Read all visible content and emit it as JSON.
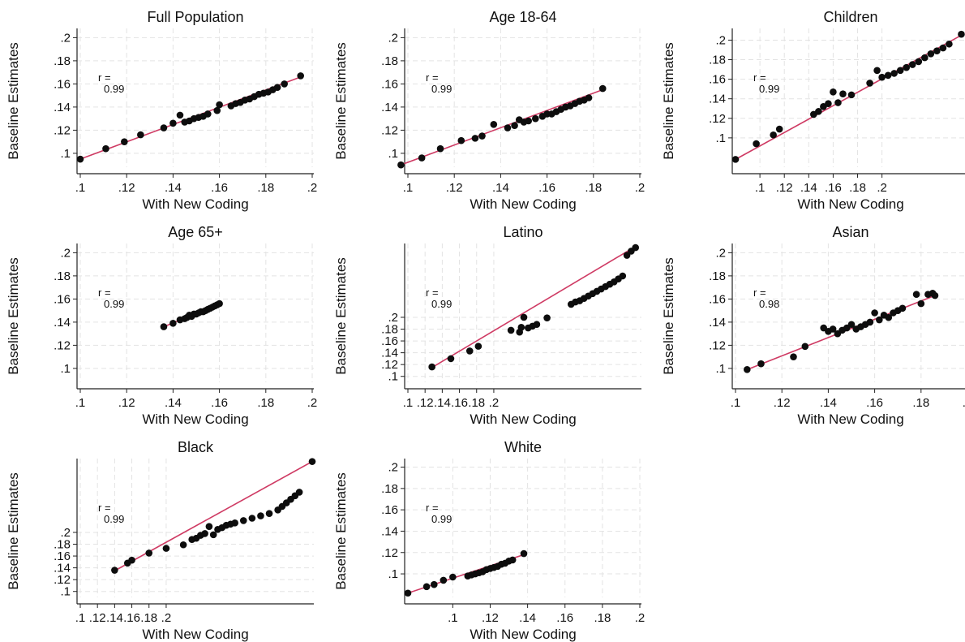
{
  "chart_data": [
    {
      "type": "scatter",
      "title": "Full Population",
      "xlabel": "With New Coding",
      "ylabel": "Baseline Estimates",
      "xticks": [
        ".1",
        ".12",
        ".14",
        ".16",
        ".18",
        ".2"
      ],
      "yticks": [
        ".1",
        ".12",
        ".14",
        ".16",
        ".18",
        ".2"
      ],
      "xlim": [
        0.1,
        0.2
      ],
      "ylim": [
        0.088,
        0.208
      ],
      "grid": true,
      "annotation": {
        "label": "r =",
        "value": "0.99"
      },
      "fit_line": {
        "x": [
          0.1,
          0.195
        ],
        "y": [
          0.095,
          0.166
        ]
      },
      "x": [
        0.1,
        0.111,
        0.119,
        0.126,
        0.136,
        0.14,
        0.143,
        0.145,
        0.147,
        0.149,
        0.151,
        0.153,
        0.155,
        0.159,
        0.16,
        0.165,
        0.167,
        0.169,
        0.171,
        0.173,
        0.175,
        0.177,
        0.179,
        0.181,
        0.183,
        0.185,
        0.188,
        0.195
      ],
      "y": [
        0.095,
        0.104,
        0.11,
        0.116,
        0.122,
        0.126,
        0.133,
        0.127,
        0.128,
        0.13,
        0.131,
        0.132,
        0.134,
        0.137,
        0.142,
        0.141,
        0.143,
        0.144,
        0.146,
        0.147,
        0.149,
        0.151,
        0.152,
        0.153,
        0.155,
        0.157,
        0.16,
        0.167
      ]
    },
    {
      "type": "scatter",
      "title": "Age 18-64",
      "xlabel": "With New Coding",
      "ylabel": "Baseline Estimates",
      "xticks": [
        ".1",
        ".12",
        ".14",
        ".16",
        ".18",
        ".2"
      ],
      "yticks": [
        ".1",
        ".12",
        ".14",
        ".16",
        ".18",
        ".2"
      ],
      "xlim": [
        0.1,
        0.2
      ],
      "ylim": [
        0.088,
        0.208
      ],
      "grid": true,
      "annotation": {
        "label": "r =",
        "value": "0.99"
      },
      "fit_line": {
        "x": [
          0.097,
          0.184
        ],
        "y": [
          0.09,
          0.155
        ]
      },
      "x": [
        0.097,
        0.106,
        0.114,
        0.123,
        0.129,
        0.132,
        0.137,
        0.143,
        0.146,
        0.148,
        0.15,
        0.152,
        0.155,
        0.158,
        0.16,
        0.162,
        0.164,
        0.166,
        0.168,
        0.17,
        0.172,
        0.174,
        0.176,
        0.178,
        0.184
      ],
      "y": [
        0.09,
        0.096,
        0.104,
        0.111,
        0.113,
        0.115,
        0.125,
        0.122,
        0.124,
        0.129,
        0.127,
        0.128,
        0.13,
        0.132,
        0.134,
        0.134,
        0.136,
        0.138,
        0.14,
        0.141,
        0.143,
        0.145,
        0.146,
        0.148,
        0.156
      ]
    },
    {
      "type": "scatter",
      "title": "Children",
      "xlabel": "With New Coding",
      "ylabel": "Baseline Estimates",
      "xticks": [
        ".1",
        ".12",
        ".14",
        ".16",
        ".18",
        ".2"
      ],
      "yticks": [
        ".1",
        ".12",
        ".14",
        ".16",
        ".18",
        ".2"
      ],
      "xlim": [
        0.08,
        0.27
      ],
      "ylim": [
        0.07,
        0.212
      ],
      "grid": true,
      "annotation": {
        "label": "r =",
        "value": "0.99"
      },
      "fit_line": {
        "x": [
          0.08,
          0.265
        ],
        "y": [
          0.078,
          0.205
        ]
      },
      "x": [
        0.08,
        0.097,
        0.111,
        0.116,
        0.144,
        0.148,
        0.152,
        0.156,
        0.16,
        0.164,
        0.168,
        0.175,
        0.19,
        0.196,
        0.2,
        0.205,
        0.21,
        0.215,
        0.22,
        0.225,
        0.23,
        0.235,
        0.24,
        0.245,
        0.25,
        0.255,
        0.265
      ],
      "y": [
        0.078,
        0.094,
        0.103,
        0.109,
        0.124,
        0.127,
        0.132,
        0.135,
        0.147,
        0.136,
        0.145,
        0.144,
        0.156,
        0.169,
        0.162,
        0.164,
        0.166,
        0.169,
        0.172,
        0.175,
        0.178,
        0.182,
        0.186,
        0.189,
        0.192,
        0.196,
        0.206
      ]
    },
    {
      "type": "scatter",
      "title": "Age 65+",
      "xlabel": "With New Coding",
      "ylabel": "Baseline Estimates",
      "xticks": [
        ".1",
        ".12",
        ".14",
        ".16",
        ".18",
        ".2"
      ],
      "yticks": [
        ".1",
        ".12",
        ".14",
        ".16",
        ".18",
        ".2"
      ],
      "xlim": [
        0.1,
        0.2
      ],
      "ylim": [
        0.088,
        0.208
      ],
      "grid": true,
      "annotation": {
        "label": "r =",
        "value": "0.99"
      },
      "fit_line": {
        "x": [
          0.136,
          0.16
        ],
        "y": [
          0.136,
          0.156
        ]
      },
      "x": [
        0.136,
        0.14,
        0.143,
        0.145,
        0.146,
        0.147,
        0.148,
        0.149,
        0.15,
        0.151,
        0.152,
        0.153,
        0.154,
        0.155,
        0.156,
        0.157,
        0.158,
        0.159,
        0.16
      ],
      "y": [
        0.136,
        0.139,
        0.142,
        0.143,
        0.144,
        0.146,
        0.145,
        0.147,
        0.147,
        0.148,
        0.149,
        0.149,
        0.15,
        0.151,
        0.152,
        0.153,
        0.154,
        0.155,
        0.156
      ]
    },
    {
      "type": "scatter",
      "title": "Latino",
      "xlabel": "With New Coding",
      "ylabel": "Baseline Estimates",
      "xticks": [
        ".1",
        ".12",
        ".14",
        ".16",
        ".18",
        ".2"
      ],
      "yticks": [
        ".1",
        ".12",
        ".14",
        ".16",
        ".18",
        ".2"
      ],
      "xlim": [
        0.1,
        0.37
      ],
      "ylim": [
        0.09,
        0.325
      ],
      "grid": true,
      "annotation": {
        "label": "r =",
        "value": "0.99"
      },
      "fit_line": {
        "x": [
          0.128,
          0.365
        ],
        "y": [
          0.115,
          0.32
        ]
      },
      "x": [
        0.128,
        0.15,
        0.172,
        0.182,
        0.22,
        0.23,
        0.232,
        0.235,
        0.24,
        0.245,
        0.25,
        0.262,
        0.29,
        0.295,
        0.3,
        0.305,
        0.31,
        0.315,
        0.32,
        0.325,
        0.33,
        0.335,
        0.34,
        0.345,
        0.35,
        0.355,
        0.36,
        0.365
      ],
      "y": [
        0.116,
        0.13,
        0.143,
        0.151,
        0.178,
        0.175,
        0.183,
        0.2,
        0.182,
        0.185,
        0.188,
        0.199,
        0.222,
        0.226,
        0.228,
        0.232,
        0.236,
        0.24,
        0.244,
        0.248,
        0.252,
        0.256,
        0.26,
        0.265,
        0.27,
        0.305,
        0.312,
        0.318
      ]
    },
    {
      "type": "scatter",
      "title": "Asian",
      "xlabel": "With New Coding",
      "ylabel": "Baseline Estimates",
      "xticks": [
        ".1",
        ".12",
        ".14",
        ".16",
        ".18",
        ".2"
      ],
      "yticks": [
        ".1",
        ".12",
        ".14",
        ".16",
        ".18",
        ".2"
      ],
      "xlim": [
        0.1,
        0.2
      ],
      "ylim": [
        0.088,
        0.208
      ],
      "grid": true,
      "annotation": {
        "label": "r =",
        "value": "0.98"
      },
      "fit_line": {
        "x": [
          0.105,
          0.186
        ],
        "y": [
          0.099,
          0.163
        ]
      },
      "x": [
        0.105,
        0.111,
        0.125,
        0.13,
        0.138,
        0.14,
        0.142,
        0.144,
        0.146,
        0.148,
        0.15,
        0.152,
        0.154,
        0.156,
        0.158,
        0.16,
        0.162,
        0.164,
        0.166,
        0.168,
        0.17,
        0.172,
        0.178,
        0.18,
        0.183,
        0.185,
        0.186
      ],
      "y": [
        0.099,
        0.104,
        0.11,
        0.119,
        0.135,
        0.132,
        0.134,
        0.13,
        0.133,
        0.135,
        0.138,
        0.134,
        0.136,
        0.138,
        0.14,
        0.148,
        0.142,
        0.146,
        0.144,
        0.148,
        0.15,
        0.152,
        0.164,
        0.156,
        0.164,
        0.165,
        0.163
      ]
    },
    {
      "type": "scatter",
      "title": "Black",
      "xlabel": "With New Coding",
      "ylabel": "Baseline Estimates",
      "xticks": [
        ".1",
        ".12",
        ".14",
        ".16",
        ".18",
        ".2"
      ],
      "yticks": [
        ".1",
        ".12",
        ".14",
        ".16",
        ".18",
        ".2"
      ],
      "xlim": [
        0.1,
        0.37
      ],
      "ylim": [
        0.09,
        0.325
      ],
      "grid": true,
      "annotation": {
        "label": "r =",
        "value": "0.99"
      },
      "fit_line": {
        "x": [
          0.14,
          0.37
        ],
        "y": [
          0.135,
          0.32
        ]
      },
      "x": [
        0.14,
        0.155,
        0.16,
        0.18,
        0.2,
        0.22,
        0.23,
        0.235,
        0.24,
        0.245,
        0.25,
        0.255,
        0.26,
        0.265,
        0.27,
        0.275,
        0.28,
        0.29,
        0.3,
        0.31,
        0.32,
        0.33,
        0.335,
        0.34,
        0.345,
        0.35,
        0.355,
        0.37
      ],
      "y": [
        0.136,
        0.148,
        0.153,
        0.165,
        0.173,
        0.179,
        0.188,
        0.19,
        0.195,
        0.198,
        0.21,
        0.196,
        0.205,
        0.208,
        0.212,
        0.214,
        0.216,
        0.22,
        0.224,
        0.228,
        0.232,
        0.238,
        0.244,
        0.25,
        0.256,
        0.262,
        0.268,
        0.32
      ]
    },
    {
      "type": "scatter",
      "title": "White",
      "xlabel": "With New Coding",
      "ylabel": "Baseline Estimates",
      "xticks": [
        ".1",
        ".12",
        ".14",
        ".16",
        ".18",
        ".2"
      ],
      "yticks": [
        ".1",
        ".12",
        ".14",
        ".16",
        ".18",
        ".2"
      ],
      "xlim": [
        0.076,
        0.2
      ],
      "ylim": [
        0.078,
        0.208
      ],
      "grid": true,
      "annotation": {
        "label": "r =",
        "value": "0.99"
      },
      "fit_line": {
        "x": [
          0.076,
          0.138
        ],
        "y": [
          0.082,
          0.118
        ]
      },
      "x": [
        0.076,
        0.086,
        0.09,
        0.095,
        0.1,
        0.108,
        0.11,
        0.112,
        0.114,
        0.116,
        0.118,
        0.12,
        0.122,
        0.124,
        0.126,
        0.128,
        0.13,
        0.132,
        0.138
      ],
      "y": [
        0.082,
        0.088,
        0.09,
        0.094,
        0.097,
        0.098,
        0.099,
        0.1,
        0.101,
        0.102,
        0.104,
        0.105,
        0.106,
        0.107,
        0.109,
        0.11,
        0.112,
        0.113,
        0.119
      ]
    }
  ]
}
